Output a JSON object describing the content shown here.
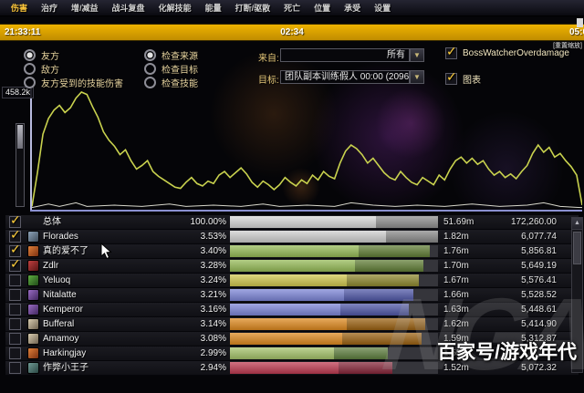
{
  "menu": {
    "items": [
      {
        "label": "伤害",
        "active": true
      },
      {
        "label": "治疗",
        "active": false
      },
      {
        "label": "增/减益",
        "active": false
      },
      {
        "label": "战斗复盘",
        "active": false
      },
      {
        "label": "化解技能",
        "active": false
      },
      {
        "label": "能量",
        "active": false
      },
      {
        "label": "打断/驱散",
        "active": false
      },
      {
        "label": "死亡",
        "active": false
      },
      {
        "label": "位置",
        "active": false
      },
      {
        "label": "承受",
        "active": false
      },
      {
        "label": "设置",
        "active": false
      }
    ]
  },
  "timebar": {
    "start": "21:33:11",
    "middle": "02:34",
    "end": "05:0",
    "reset_zoom": "[重置缩放]"
  },
  "filters": {
    "left_radios": [
      {
        "label": "友方",
        "selected": true
      },
      {
        "label": "敌方",
        "selected": false
      },
      {
        "label": "友方受到的技能伤害",
        "selected": false
      }
    ],
    "mode_radios": [
      {
        "label": "检查来源",
        "selected": true
      },
      {
        "label": "检查目标",
        "selected": false
      },
      {
        "label": "检查技能",
        "selected": false
      }
    ],
    "source_label": "来自:",
    "source_value": "所有",
    "target_label": "目标:",
    "target_value": "团队副本训练假人 00:00 (2096...",
    "dropdown_arrow": "▼",
    "checkboxes": [
      {
        "label": "BossWatcherOverdamage",
        "checked": true
      },
      {
        "label": "图表",
        "checked": true
      }
    ]
  },
  "graph": {
    "y_max_label": "458.2k",
    "line_color": "#c9d24e",
    "secondary_color": "#d8d8cc",
    "main_series": [
      [
        0,
        2
      ],
      [
        1,
        30
      ],
      [
        2,
        62
      ],
      [
        3,
        75
      ],
      [
        4,
        82
      ],
      [
        5,
        86
      ],
      [
        6,
        80
      ],
      [
        7,
        84
      ],
      [
        8,
        92
      ],
      [
        9,
        97
      ],
      [
        10,
        95
      ],
      [
        11,
        85
      ],
      [
        12,
        76
      ],
      [
        13,
        64
      ],
      [
        14,
        57
      ],
      [
        15,
        52
      ],
      [
        16,
        45
      ],
      [
        17,
        49
      ],
      [
        18,
        40
      ],
      [
        19,
        33
      ],
      [
        20,
        36
      ],
      [
        21,
        40
      ],
      [
        22,
        31
      ],
      [
        23,
        27
      ],
      [
        24,
        24
      ],
      [
        25,
        21
      ],
      [
        26,
        18
      ],
      [
        27,
        17
      ],
      [
        28,
        22
      ],
      [
        29,
        26
      ],
      [
        30,
        21
      ],
      [
        31,
        19
      ],
      [
        32,
        23
      ],
      [
        33,
        21
      ],
      [
        34,
        28
      ],
      [
        35,
        31
      ],
      [
        36,
        26
      ],
      [
        37,
        30
      ],
      [
        38,
        34
      ],
      [
        39,
        29
      ],
      [
        40,
        22
      ],
      [
        41,
        18
      ],
      [
        42,
        23
      ],
      [
        43,
        20
      ],
      [
        44,
        16
      ],
      [
        45,
        20
      ],
      [
        46,
        26
      ],
      [
        47,
        22
      ],
      [
        48,
        19
      ],
      [
        49,
        24
      ],
      [
        50,
        21
      ],
      [
        51,
        28
      ],
      [
        52,
        24
      ],
      [
        53,
        31
      ],
      [
        54,
        27
      ],
      [
        55,
        25
      ],
      [
        56,
        38
      ],
      [
        57,
        48
      ],
      [
        58,
        53
      ],
      [
        59,
        50
      ],
      [
        60,
        45
      ],
      [
        61,
        38
      ],
      [
        62,
        42
      ],
      [
        63,
        36
      ],
      [
        64,
        30
      ],
      [
        65,
        26
      ],
      [
        66,
        24
      ],
      [
        67,
        31
      ],
      [
        68,
        26
      ],
      [
        69,
        22
      ],
      [
        70,
        20
      ],
      [
        71,
        26
      ],
      [
        72,
        23
      ],
      [
        73,
        20
      ],
      [
        74,
        28
      ],
      [
        75,
        24
      ],
      [
        76,
        33
      ],
      [
        77,
        40
      ],
      [
        78,
        43
      ],
      [
        79,
        38
      ],
      [
        80,
        42
      ],
      [
        81,
        37
      ],
      [
        82,
        40
      ],
      [
        83,
        33
      ],
      [
        84,
        28
      ],
      [
        85,
        31
      ],
      [
        86,
        26
      ],
      [
        87,
        29
      ],
      [
        88,
        25
      ],
      [
        89,
        31
      ],
      [
        90,
        36
      ],
      [
        91,
        46
      ],
      [
        92,
        53
      ],
      [
        93,
        47
      ],
      [
        94,
        51
      ],
      [
        95,
        43
      ],
      [
        96,
        46
      ],
      [
        97,
        40
      ],
      [
        98,
        35
      ],
      [
        99,
        28
      ],
      [
        100,
        3
      ]
    ],
    "secondary_series": [
      [
        0,
        1
      ],
      [
        3,
        4
      ],
      [
        5,
        2
      ],
      [
        8,
        5
      ],
      [
        10,
        2
      ],
      [
        15,
        3
      ],
      [
        20,
        2
      ],
      [
        25,
        4
      ],
      [
        28,
        2
      ],
      [
        33,
        3
      ],
      [
        38,
        2
      ],
      [
        42,
        4
      ],
      [
        45,
        2
      ],
      [
        50,
        3
      ],
      [
        55,
        2
      ],
      [
        58,
        5
      ],
      [
        62,
        3
      ],
      [
        66,
        2
      ],
      [
        70,
        3
      ],
      [
        75,
        2
      ],
      [
        80,
        4
      ],
      [
        85,
        2
      ],
      [
        90,
        3
      ],
      [
        93,
        5
      ],
      [
        96,
        2
      ],
      [
        100,
        1
      ]
    ]
  },
  "table": {
    "rows": [
      {
        "checked": true,
        "icon": null,
        "name": "总体",
        "pct": "100.00%",
        "dps": "51.69m",
        "total": "172,260.00",
        "bar": {
          "light": "#d8d8d8",
          "dark": "#8f8f8f",
          "light_pct": 70,
          "end_pct": 100
        }
      },
      {
        "checked": true,
        "icon": [
          "#8da3b8",
          "#3f4c59"
        ],
        "name": "Florades",
        "pct": "3.53%",
        "dps": "1.82m",
        "total": "6,077.74",
        "bar": {
          "light": "#cfcfcf",
          "dark": "#8a8a8a",
          "light_pct": 75,
          "end_pct": 100
        }
      },
      {
        "checked": true,
        "icon": [
          "#e0803a",
          "#7a3010"
        ],
        "name": "真的爱不了",
        "pct": "3.40%",
        "dps": "1.76m",
        "total": "5,856.81",
        "bar": {
          "light": "#96bb57",
          "dark": "#617e36",
          "light_pct": 62,
          "end_pct": 96
        }
      },
      {
        "checked": true,
        "icon": [
          "#c04040",
          "#5a1515"
        ],
        "name": "Zdlr",
        "pct": "3.28%",
        "dps": "1.70m",
        "total": "5,649.19",
        "bar": {
          "light": "#96bb57",
          "dark": "#617e36",
          "light_pct": 60,
          "end_pct": 93
        }
      },
      {
        "checked": false,
        "icon": [
          "#5fae42",
          "#204a18"
        ],
        "name": "Yeluoq",
        "pct": "3.24%",
        "dps": "1.67m",
        "total": "5,576.41",
        "bar": {
          "light": "#d2c94f",
          "dark": "#8f892f",
          "light_pct": 56,
          "end_pct": 91
        }
      },
      {
        "checked": false,
        "icon": [
          "#9a6cc4",
          "#40265e"
        ],
        "name": "Nitalatte",
        "pct": "3.21%",
        "dps": "1.66m",
        "total": "5,528.52",
        "bar": {
          "light": "#7d86d8",
          "dark": "#5058a8",
          "light_pct": 55,
          "end_pct": 88
        }
      },
      {
        "checked": false,
        "icon": [
          "#9a6cc4",
          "#40265e"
        ],
        "name": "Kemperor",
        "pct": "3.16%",
        "dps": "1.63m",
        "total": "5,448.61",
        "bar": {
          "light": "#7d86d8",
          "dark": "#5058a8",
          "light_pct": 53,
          "end_pct": 86
        }
      },
      {
        "checked": false,
        "icon": [
          "#d8ccb0",
          "#6e6250"
        ],
        "name": "Bufferal",
        "pct": "3.14%",
        "dps": "1.62m",
        "total": "5,414.90",
        "bar": {
          "light": "#df8a1f",
          "dark": "#9c6212",
          "light_pct": 56,
          "end_pct": 94
        }
      },
      {
        "checked": false,
        "icon": [
          "#d8ccb0",
          "#6e6250"
        ],
        "name": "Amamoy",
        "pct": "3.08%",
        "dps": "1.59m",
        "total": "5,312.87",
        "bar": {
          "light": "#df8a1f",
          "dark": "#9c6212",
          "light_pct": 54,
          "end_pct": 92
        }
      },
      {
        "checked": false,
        "icon": [
          "#e0803a",
          "#7a3010"
        ],
        "name": "Harkingjay",
        "pct": "2.99%",
        "dps": "1.55m",
        "total": "",
        "bar": {
          "light": "#a5c46a",
          "dark": "#5f7f3f",
          "light_pct": 50,
          "end_pct": 76
        }
      },
      {
        "checked": false,
        "icon": [
          "#6f9a94",
          "#2c4844"
        ],
        "name": "作弊小王子",
        "pct": "2.94%",
        "dps": "1.52m",
        "total": "5,072.32",
        "bar": {
          "light": "#bf3b52",
          "dark": "#87263a",
          "light_pct": 52,
          "end_pct": 78
        }
      }
    ],
    "scroll_up_glyph": "▲"
  },
  "watermarks": {
    "nga": "NGA",
    "baijia": "百家号/游戏年代"
  }
}
